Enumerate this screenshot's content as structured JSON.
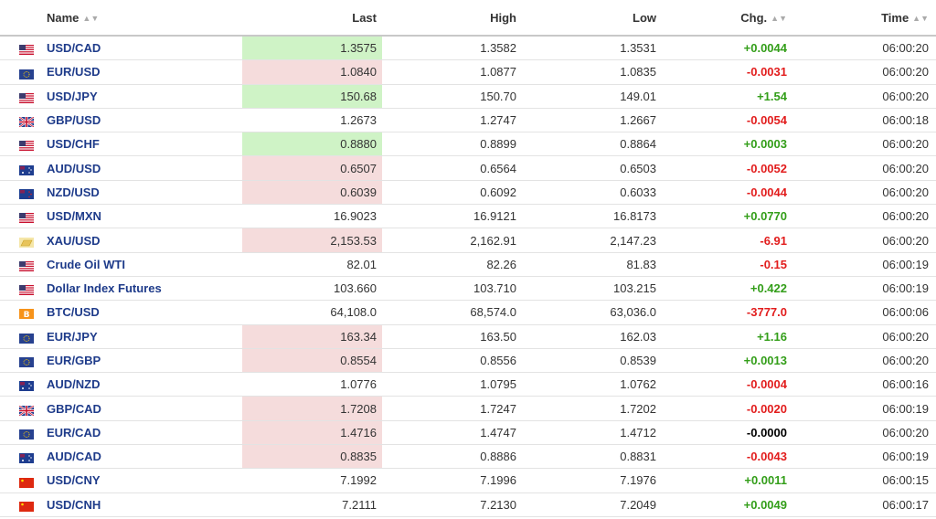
{
  "columns": {
    "name": "Name",
    "last": "Last",
    "high": "High",
    "low": "Low",
    "chg": "Chg.",
    "time": "Time"
  },
  "colors": {
    "positive": "#339e19",
    "negative": "#e21d1d",
    "neutral": "#000000",
    "name_link": "#1e3b8a",
    "up_highlight": "#cff3c6",
    "down_highlight": "#f5dcdc"
  },
  "rows": [
    {
      "flag": "us-flag-icon",
      "name": "USD/CAD",
      "last": "1.3575",
      "high": "1.3582",
      "low": "1.3531",
      "chg": "+0.0044",
      "dir": "pos",
      "highlight": "up",
      "time": "06:00:20"
    },
    {
      "flag": "eu-flag-icon",
      "name": "EUR/USD",
      "last": "1.0840",
      "high": "1.0877",
      "low": "1.0835",
      "chg": "-0.0031",
      "dir": "neg",
      "highlight": "down",
      "time": "06:00:20"
    },
    {
      "flag": "us-flag-icon",
      "name": "USD/JPY",
      "last": "150.68",
      "high": "150.70",
      "low": "149.01",
      "chg": "+1.54",
      "dir": "pos",
      "highlight": "up",
      "time": "06:00:20"
    },
    {
      "flag": "uk-flag-icon",
      "name": "GBP/USD",
      "last": "1.2673",
      "high": "1.2747",
      "low": "1.2667",
      "chg": "-0.0054",
      "dir": "neg",
      "highlight": "none",
      "time": "06:00:18"
    },
    {
      "flag": "us-flag-icon",
      "name": "USD/CHF",
      "last": "0.8880",
      "high": "0.8899",
      "low": "0.8864",
      "chg": "+0.0003",
      "dir": "pos",
      "highlight": "up",
      "time": "06:00:20"
    },
    {
      "flag": "au-flag-icon",
      "name": "AUD/USD",
      "last": "0.6507",
      "high": "0.6564",
      "low": "0.6503",
      "chg": "-0.0052",
      "dir": "neg",
      "highlight": "down",
      "time": "06:00:20"
    },
    {
      "flag": "nz-flag-icon",
      "name": "NZD/USD",
      "last": "0.6039",
      "high": "0.6092",
      "low": "0.6033",
      "chg": "-0.0044",
      "dir": "neg",
      "highlight": "down",
      "time": "06:00:20"
    },
    {
      "flag": "us-flag-icon",
      "name": "USD/MXN",
      "last": "16.9023",
      "high": "16.9121",
      "low": "16.8173",
      "chg": "+0.0770",
      "dir": "pos",
      "highlight": "none",
      "time": "06:00:20"
    },
    {
      "flag": "gold-icon",
      "name": "XAU/USD",
      "last": "2,153.53",
      "high": "2,162.91",
      "low": "2,147.23",
      "chg": "-6.91",
      "dir": "neg",
      "highlight": "down",
      "time": "06:00:20"
    },
    {
      "flag": "us-flag-icon",
      "name": "Crude Oil WTI",
      "last": "82.01",
      "high": "82.26",
      "low": "81.83",
      "chg": "-0.15",
      "dir": "neg",
      "highlight": "none",
      "time": "06:00:19"
    },
    {
      "flag": "us-flag-icon",
      "name": "Dollar Index Futures",
      "last": "103.660",
      "high": "103.710",
      "low": "103.215",
      "chg": "+0.422",
      "dir": "pos",
      "highlight": "none",
      "time": "06:00:19"
    },
    {
      "flag": "bitcoin-icon",
      "name": "BTC/USD",
      "last": "64,108.0",
      "high": "68,574.0",
      "low": "63,036.0",
      "chg": "-3777.0",
      "dir": "neg",
      "highlight": "none",
      "time": "06:00:06"
    },
    {
      "flag": "eu-flag-icon",
      "name": "EUR/JPY",
      "last": "163.34",
      "high": "163.50",
      "low": "162.03",
      "chg": "+1.16",
      "dir": "pos",
      "highlight": "down",
      "time": "06:00:20"
    },
    {
      "flag": "eu-flag-icon",
      "name": "EUR/GBP",
      "last": "0.8554",
      "high": "0.8556",
      "low": "0.8539",
      "chg": "+0.0013",
      "dir": "pos",
      "highlight": "down",
      "time": "06:00:20"
    },
    {
      "flag": "au-flag-icon",
      "name": "AUD/NZD",
      "last": "1.0776",
      "high": "1.0795",
      "low": "1.0762",
      "chg": "-0.0004",
      "dir": "neg",
      "highlight": "none",
      "time": "06:00:16"
    },
    {
      "flag": "uk-flag-icon",
      "name": "GBP/CAD",
      "last": "1.7208",
      "high": "1.7247",
      "low": "1.7202",
      "chg": "-0.0020",
      "dir": "neg",
      "highlight": "down",
      "time": "06:00:19"
    },
    {
      "flag": "eu-flag-icon",
      "name": "EUR/CAD",
      "last": "1.4716",
      "high": "1.4747",
      "low": "1.4712",
      "chg": "-0.0000",
      "dir": "zero",
      "highlight": "down",
      "time": "06:00:20"
    },
    {
      "flag": "au-flag-icon",
      "name": "AUD/CAD",
      "last": "0.8835",
      "high": "0.8886",
      "low": "0.8831",
      "chg": "-0.0043",
      "dir": "neg",
      "highlight": "down",
      "time": "06:00:19"
    },
    {
      "flag": "cn-flag-icon",
      "name": "USD/CNY",
      "last": "7.1992",
      "high": "7.1996",
      "low": "7.1976",
      "chg": "+0.0011",
      "dir": "pos",
      "highlight": "none",
      "time": "06:00:15"
    },
    {
      "flag": "cn-flag-icon",
      "name": "USD/CNH",
      "last": "7.2111",
      "high": "7.2130",
      "low": "7.2049",
      "chg": "+0.0049",
      "dir": "pos",
      "highlight": "none",
      "time": "06:00:17"
    }
  ]
}
